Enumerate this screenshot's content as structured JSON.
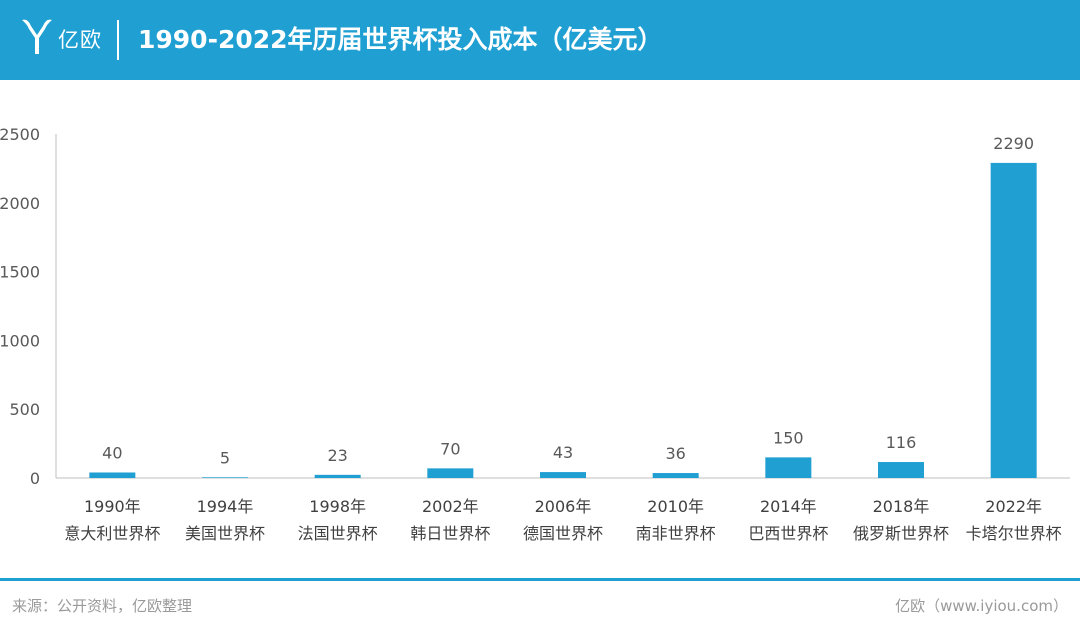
{
  "header": {
    "brand": "亿欧",
    "title": "1990-2022年历届世界杯投入成本（亿美元）",
    "background_color": "#1f9fd2",
    "logo_icon": "iyiou-logo-icon"
  },
  "chart_data": {
    "type": "bar",
    "title": "1990-2022年历届世界杯投入成本（亿美元）",
    "xlabel": "",
    "ylabel": "",
    "categories": [
      [
        "1990年",
        "意大利世界杯"
      ],
      [
        "1994年",
        "美国世界杯"
      ],
      [
        "1998年",
        "法国世界杯"
      ],
      [
        "2002年",
        "韩日世界杯"
      ],
      [
        "2006年",
        "德国世界杯"
      ],
      [
        "2010年",
        "南非世界杯"
      ],
      [
        "2014年",
        "巴西世界杯"
      ],
      [
        "2018年",
        "俄罗斯世界杯"
      ],
      [
        "2022年",
        "卡塔尔世界杯"
      ]
    ],
    "values": [
      40,
      5,
      23,
      70,
      43,
      36,
      150,
      116,
      2290
    ],
    "value_labels": [
      "40",
      "5",
      "23",
      "70",
      "43",
      "36",
      "150",
      "116",
      "2290"
    ],
    "ylim": [
      0,
      2500
    ],
    "yticks": [
      "0",
      "500",
      "1000",
      "1500",
      "2000",
      "2500"
    ],
    "grid": false,
    "legend": "none",
    "bar_color": "#1f9fd2"
  },
  "footer": {
    "source": "来源：公开资料，亿欧整理",
    "site": "亿欧（www.iyiou.com）"
  }
}
